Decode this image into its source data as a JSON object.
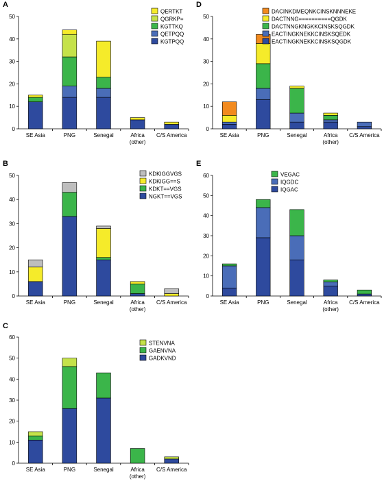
{
  "chart_data": [
    {
      "panel": "A",
      "type": "bar",
      "stacked": true,
      "categories": [
        "SE Asia",
        "PNG",
        "Senegal",
        "Africa\n(other)",
        "C/S America"
      ],
      "ylim": [
        0,
        50
      ],
      "yticks": [
        0,
        10,
        20,
        30,
        40,
        50
      ],
      "series": [
        {
          "name": "KGTPQQ",
          "color": "#2E4A9E",
          "values": [
            12,
            14,
            14,
            4,
            2
          ]
        },
        {
          "name": "QETPQQ",
          "color": "#4A6DB8",
          "values": [
            0,
            5,
            4,
            0,
            0
          ]
        },
        {
          "name": "KGTTKQ",
          "color": "#3BB54A",
          "values": [
            2,
            13,
            5,
            0,
            0
          ]
        },
        {
          "name": "QGRKP=",
          "color": "#C5E24A",
          "values": [
            0,
            10,
            0,
            0,
            0
          ]
        },
        {
          "name": "QERTKT",
          "color": "#F5EB2A",
          "values": [
            1,
            2,
            16,
            1,
            1
          ]
        }
      ]
    },
    {
      "panel": "D",
      "type": "bar",
      "stacked": true,
      "categories": [
        "SE Asia",
        "PNG",
        "Senegal",
        "Africa\n(other)",
        "C/S America"
      ],
      "ylim": [
        0,
        50
      ],
      "yticks": [
        0,
        10,
        20,
        30,
        40,
        50
      ],
      "series": [
        {
          "name": "EACTINGKNEKKCINSKSQGDK",
          "color": "#2E4A9E",
          "values": [
            2,
            13,
            3,
            3,
            1
          ]
        },
        {
          "name": "EACTINGKNEKKCINSKSQEDK",
          "color": "#4A6DB8",
          "values": [
            1,
            5,
            4,
            1,
            2
          ]
        },
        {
          "name": "DACTNNGKNGKKCINSKSQGDK",
          "color": "#3BB54A",
          "values": [
            0,
            11,
            11,
            2,
            0
          ]
        },
        {
          "name": "DACTNNG==========QGDK",
          "color": "#F5EB2A",
          "values": [
            3,
            9,
            1,
            1,
            0
          ]
        },
        {
          "name": "DACINKDMEQNKCINSKNNNEKE",
          "color": "#F28A1E",
          "values": [
            6,
            4,
            0,
            0,
            0
          ]
        }
      ]
    },
    {
      "panel": "B",
      "type": "bar",
      "stacked": true,
      "categories": [
        "SE Asia",
        "PNG",
        "Senegal",
        "Africa\n(other)",
        "C/S America"
      ],
      "ylim": [
        0,
        50
      ],
      "yticks": [
        0,
        10,
        20,
        30,
        40,
        50
      ],
      "series": [
        {
          "name": "NGKT==VGS",
          "color": "#2E4A9E",
          "values": [
            6,
            33,
            15,
            1,
            0
          ]
        },
        {
          "name": "KDKT==VGS",
          "color": "#3BB54A",
          "values": [
            0,
            10,
            1,
            4,
            0
          ]
        },
        {
          "name": "KDKIGG==S",
          "color": "#F5EB2A",
          "values": [
            6,
            0,
            12,
            1,
            1
          ]
        },
        {
          "name": "KDKIGGVGS",
          "color": "#BEBEBE",
          "values": [
            3,
            4,
            1,
            0,
            2
          ]
        }
      ]
    },
    {
      "panel": "E",
      "type": "bar",
      "stacked": true,
      "categories": [
        "SE Asia",
        "PNG",
        "Senegal",
        "Africa\n(other)",
        "C/S America"
      ],
      "ylim": [
        0,
        60
      ],
      "yticks": [
        0,
        10,
        20,
        30,
        40,
        50,
        60
      ],
      "series": [
        {
          "name": "IQGAC",
          "color": "#2E4A9E",
          "values": [
            4,
            29,
            18,
            5,
            1
          ]
        },
        {
          "name": "IQGDC",
          "color": "#4A6DB8",
          "values": [
            11,
            15,
            12,
            2,
            0
          ]
        },
        {
          "name": "VEGAC",
          "color": "#3BB54A",
          "values": [
            1,
            4,
            13,
            1,
            2
          ]
        }
      ]
    },
    {
      "panel": "C",
      "type": "bar",
      "stacked": true,
      "categories": [
        "SE Asia",
        "PNG",
        "Senegal",
        "Africa\n(other)",
        "C/S America"
      ],
      "ylim": [
        0,
        60
      ],
      "yticks": [
        0,
        10,
        20,
        30,
        40,
        50,
        60
      ],
      "series": [
        {
          "name": "GADKVND",
          "color": "#2E4A9E",
          "values": [
            11,
            26,
            31,
            0,
            2
          ]
        },
        {
          "name": "GAENVNA",
          "color": "#3BB54A",
          "values": [
            2,
            20,
            12,
            7,
            0
          ]
        },
        {
          "name": "STENVNA",
          "color": "#C5E24A",
          "values": [
            2,
            4,
            0,
            0,
            1
          ]
        }
      ]
    }
  ]
}
